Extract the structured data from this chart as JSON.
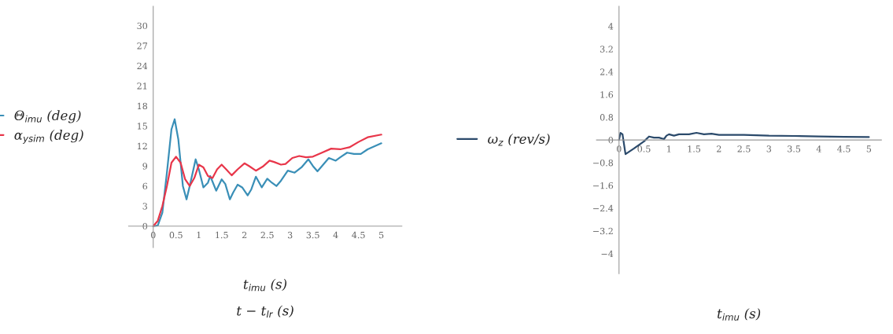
{
  "chart_data": [
    {
      "type": "line",
      "xlabel": "t$_{imu}$ (s)",
      "annotations": [
        "t − t$_{lr}$ (s)"
      ],
      "legend": "left",
      "xlim": [
        -0.54,
        5.45
      ],
      "ylim": [
        -3.2,
        32.9
      ],
      "xticks": [
        0,
        0.5,
        1,
        1.5,
        2,
        2.5,
        3,
        3.5,
        4,
        4.5,
        5
      ],
      "yticks": [
        0,
        3,
        6,
        9,
        12,
        15,
        18,
        21,
        24,
        27,
        30
      ],
      "series": [
        {
          "name": "Θ$_{imu}$ (deg)",
          "color": "#3a8fb7",
          "x": [
            0,
            0.1,
            0.2,
            0.3,
            0.4,
            0.47,
            0.55,
            0.65,
            0.73,
            0.8,
            0.93,
            1.0,
            1.1,
            1.2,
            1.25,
            1.38,
            1.5,
            1.58,
            1.68,
            1.75,
            1.85,
            1.95,
            2.07,
            2.15,
            2.25,
            2.38,
            2.5,
            2.6,
            2.7,
            2.8,
            2.95,
            3.1,
            3.25,
            3.4,
            3.5,
            3.6,
            3.7,
            3.85,
            4.0,
            4.1,
            4.25,
            4.4,
            4.55,
            4.7,
            5.0
          ],
          "values": [
            0,
            0.1,
            2,
            8,
            14.5,
            16,
            13,
            6,
            4,
            6,
            10,
            8.5,
            5.8,
            6.5,
            7.5,
            5.3,
            7,
            6.3,
            4,
            5,
            6.2,
            5.8,
            4.6,
            5.5,
            7.4,
            5.8,
            7.1,
            6.5,
            6,
            6.8,
            8.3,
            8,
            8.8,
            10,
            9,
            8.2,
            9,
            10.2,
            9.8,
            10.3,
            11,
            10.8,
            10.8,
            11.5,
            12.4
          ]
        },
        {
          "name": "α$_{ysim}$ (deg)",
          "color": "#e8364a",
          "x": [
            0,
            0.1,
            0.2,
            0.3,
            0.4,
            0.5,
            0.6,
            0.7,
            0.8,
            0.9,
            1.0,
            1.1,
            1.2,
            1.3,
            1.4,
            1.5,
            1.6,
            1.72,
            1.85,
            2.0,
            2.1,
            2.25,
            2.4,
            2.55,
            2.65,
            2.8,
            2.9,
            3.05,
            3.2,
            3.35,
            3.5,
            3.7,
            3.9,
            4.1,
            4.3,
            4.5,
            4.7,
            5.0
          ],
          "values": [
            0,
            0.8,
            3,
            6,
            9.5,
            10.4,
            9.5,
            7,
            6,
            7.2,
            9.2,
            8.8,
            7.5,
            7.2,
            8.5,
            9.2,
            8.5,
            7.6,
            8.5,
            9.4,
            9,
            8.3,
            8.9,
            9.8,
            9.6,
            9.2,
            9.3,
            10.2,
            10.5,
            10.3,
            10.4,
            11,
            11.6,
            11.5,
            11.8,
            12.6,
            13.3,
            13.7
          ]
        }
      ]
    },
    {
      "type": "line",
      "xlabel": "t$_{imu}$ (s)",
      "legend": "left",
      "xlim": [
        -0.45,
        5.25
      ],
      "ylim": [
        -4.7,
        4.7
      ],
      "xticks": [
        0,
        0.5,
        1,
        1.5,
        2,
        2.5,
        3,
        3.5,
        4,
        4.5,
        5
      ],
      "yticks": [
        {
          "value": -4,
          "label": "−4"
        },
        {
          "value": -3.2,
          "label": "−3.2"
        },
        {
          "value": -2.4,
          "label": "−2.4"
        },
        {
          "value": -1.6,
          "label": "−1.6"
        },
        {
          "value": -0.8,
          "label": "−0.8"
        },
        0,
        0.8,
        1.6,
        2.4,
        3.2,
        4
      ],
      "series": [
        {
          "name": "ω$_{z}$ (rev/s)",
          "color": "#2b4a6b",
          "x": [
            0,
            0.03,
            0.07,
            0.13,
            0.3,
            0.5,
            0.6,
            0.7,
            0.8,
            0.9,
            0.95,
            1.0,
            1.1,
            1.2,
            1.4,
            1.55,
            1.7,
            1.85,
            2.0,
            2.5,
            3.0,
            3.5,
            4.0,
            4.5,
            5.0
          ],
          "values": [
            0,
            0.25,
            0.2,
            -0.5,
            -0.3,
            -0.05,
            0.12,
            0.08,
            0.08,
            0.03,
            0.15,
            0.2,
            0.15,
            0.2,
            0.2,
            0.25,
            0.2,
            0.22,
            0.18,
            0.18,
            0.15,
            0.14,
            0.12,
            0.11,
            0.1
          ]
        }
      ]
    }
  ]
}
